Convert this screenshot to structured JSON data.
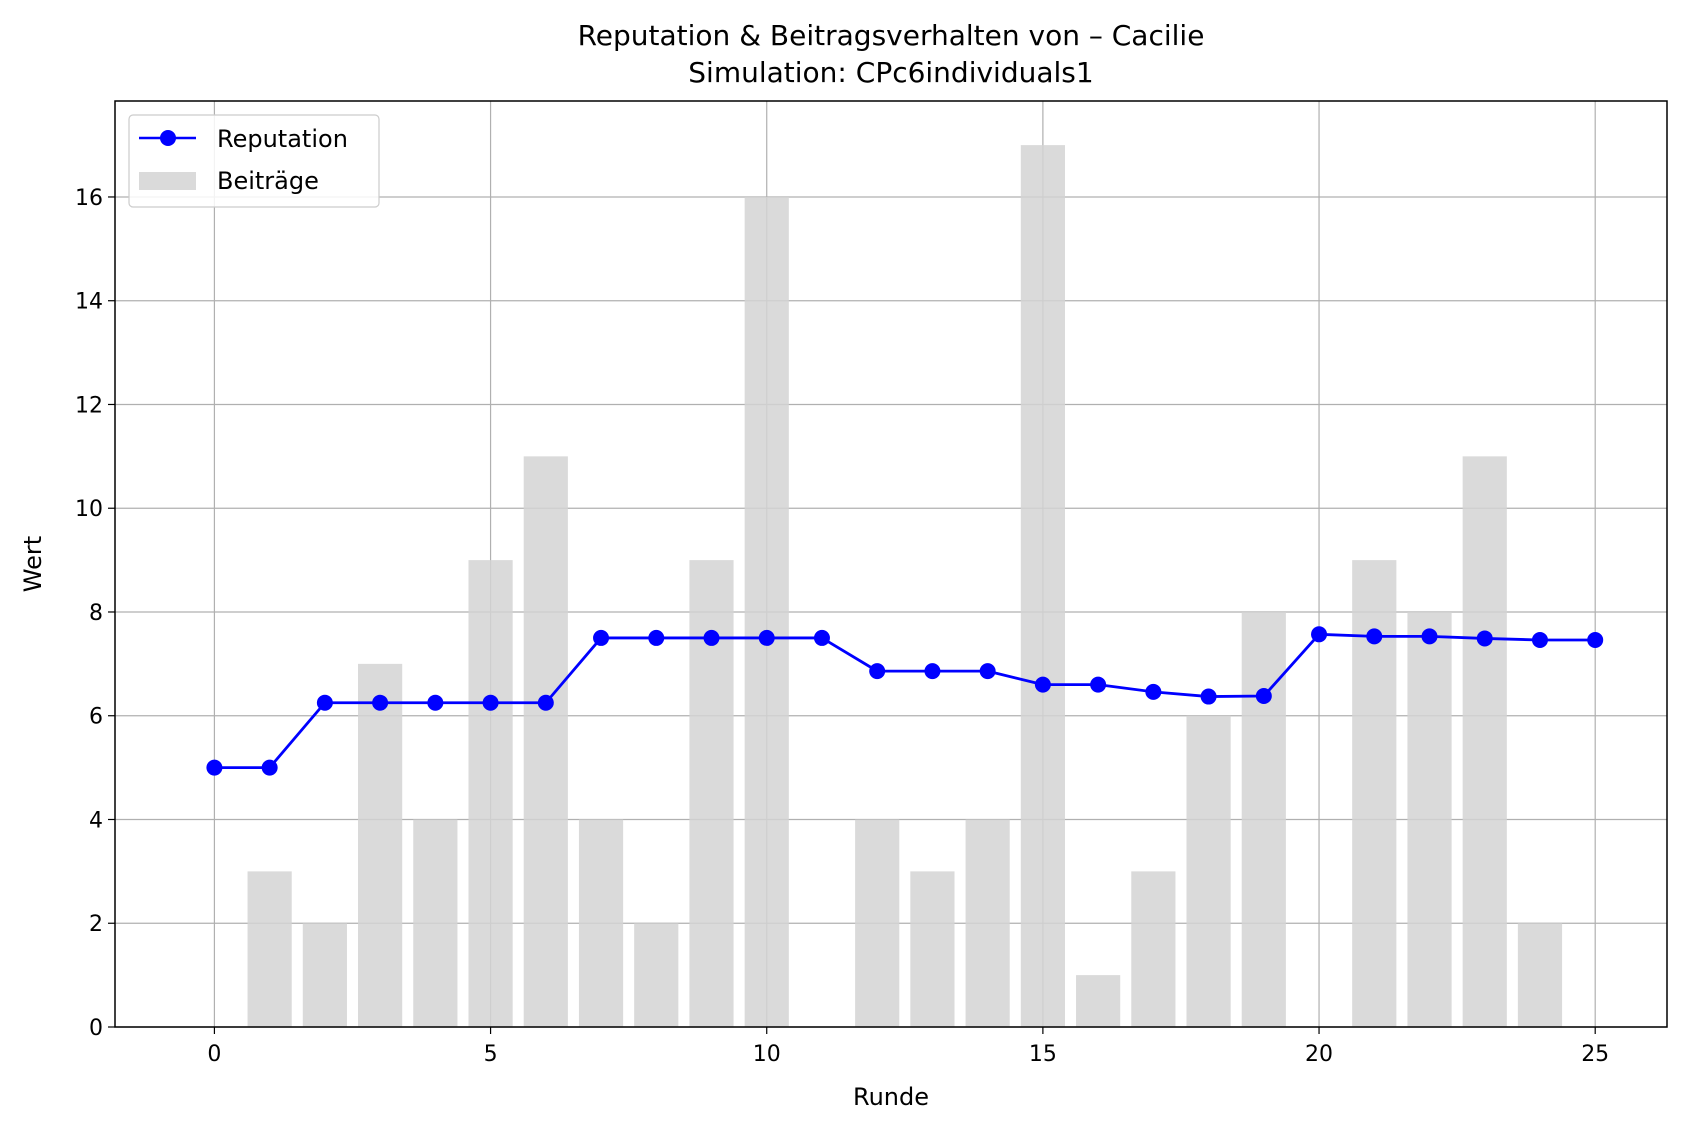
{
  "chart_data": {
    "type": "bar",
    "title": "Reputation & Beitragsverhalten von – Cacilie",
    "subtitle": "Simulation: CPc6individuals1",
    "xlabel": "Runde",
    "ylabel": "Wert",
    "xlim": [
      -1.8,
      26.3
    ],
    "ylim": [
      0,
      17.85
    ],
    "x_ticks": [
      0,
      5,
      10,
      15,
      20,
      25
    ],
    "y_ticks": [
      0,
      2,
      4,
      6,
      8,
      10,
      12,
      14,
      16
    ],
    "grid": true,
    "legend_position": "top-left",
    "x": [
      0,
      1,
      2,
      3,
      4,
      5,
      6,
      7,
      8,
      9,
      10,
      11,
      12,
      13,
      14,
      15,
      16,
      17,
      18,
      19,
      20,
      21,
      22,
      23,
      24,
      25
    ],
    "series": [
      {
        "name": "Reputation",
        "kind": "line",
        "color": "#0000ff",
        "values": [
          5.0,
          5.0,
          6.25,
          6.25,
          6.25,
          6.25,
          6.25,
          7.5,
          7.5,
          7.5,
          7.5,
          7.5,
          6.86,
          6.86,
          6.86,
          6.6,
          6.6,
          6.46,
          6.37,
          6.38,
          7.57,
          7.53,
          7.53,
          7.49,
          7.46,
          7.46
        ]
      },
      {
        "name": "Beiträge",
        "kind": "bar",
        "color": "#d3d3d3",
        "values": [
          0,
          3,
          2,
          7,
          4,
          9,
          11,
          4,
          2,
          9,
          16,
          0,
          4,
          3,
          4,
          17,
          1,
          3,
          6,
          8,
          0,
          9,
          8,
          11,
          2,
          0
        ]
      }
    ]
  }
}
